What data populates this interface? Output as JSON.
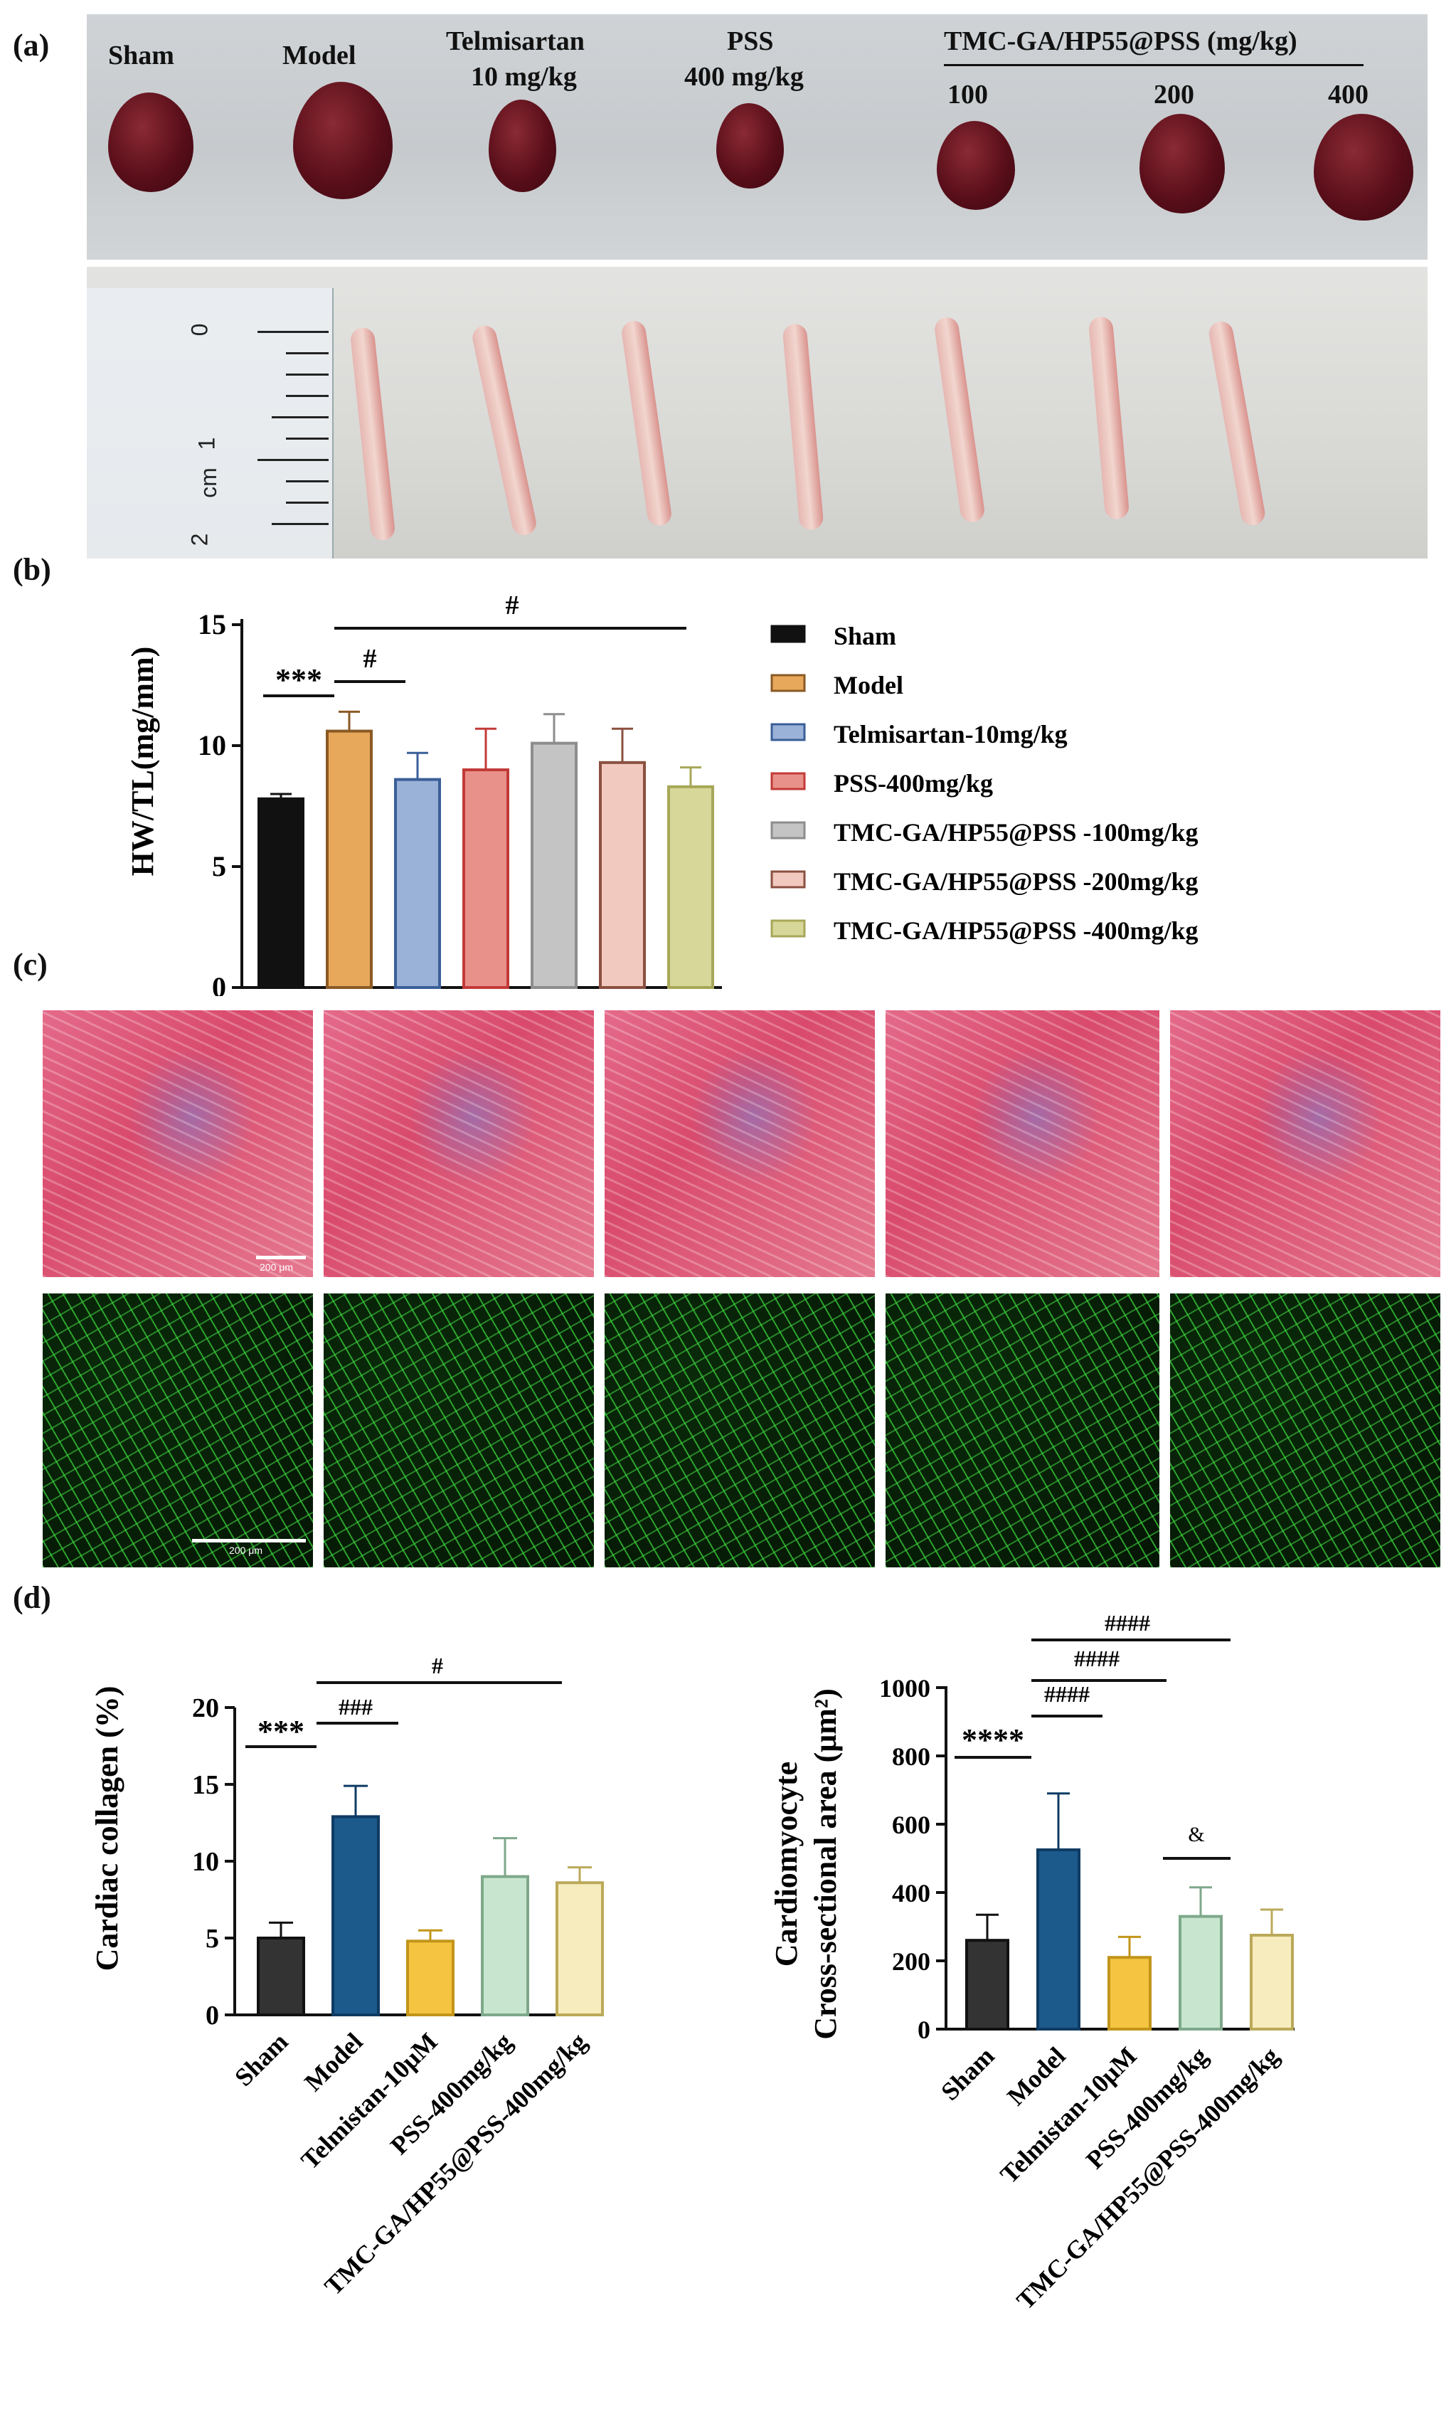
{
  "panel_labels": {
    "a": "(a)",
    "b": "(b)",
    "c": "(c)",
    "d": "(d)"
  },
  "hearts_photo": {
    "labels": {
      "sham": "Sham",
      "model": "Model",
      "telmisartan_1": "Telmisartan",
      "telmisartan_2": "10 mg/kg",
      "pss_1": "PSS",
      "pss_2": "400 mg/kg",
      "tmc_header": "TMC-GA/HP55@PSS (mg/kg)",
      "dose_100": "100",
      "dose_200": "200",
      "dose_400": "400"
    }
  },
  "tibia_photo": {
    "ruler_marks": [
      "0",
      "1",
      "cm",
      "2"
    ]
  },
  "micrographs": {
    "scale_label_top": "200 μm",
    "scale_label_bottom": "200 μm"
  },
  "colors": {
    "sham": "#111111",
    "model": "#e8a85c",
    "telmisartan": "#9bb2d8",
    "pss": "#e8918a",
    "tmc100": "#c4c4c4",
    "tmc200": "#f2c9bf",
    "tmc400": "#d7d79a",
    "d_sham": "#333333",
    "d_model": "#1c5a8c",
    "d_telmi": "#f5c542",
    "d_pss": "#c8e6cf",
    "d_tmc": "#f7ecbd"
  },
  "chart_data": [
    {
      "type": "bar",
      "ylabel": "HW/TL(mg/mm)",
      "ylim": [
        0,
        15
      ],
      "yticks": [
        "0",
        "5",
        "10",
        "15"
      ],
      "categories": [
        "Sham",
        "Model",
        "Telmisartan-10mg/kg",
        "PSS-400mg/kg",
        "TMC-GA/HP55@PSS -100mg/kg",
        "TMC-GA/HP55@PSS -200mg/kg",
        "TMC-GA/HP55@PSS -400mg/kg"
      ],
      "values": [
        7.8,
        10.6,
        8.6,
        9.0,
        10.1,
        9.3,
        8.3
      ],
      "errors": [
        0.2,
        0.8,
        1.1,
        1.7,
        1.2,
        1.4,
        0.8
      ],
      "legend": [
        "Sham",
        "Model",
        "Telmisartan-10mg/kg",
        "PSS-400mg/kg",
        "TMC-GA/HP55@PSS -100mg/kg",
        "TMC-GA/HP55@PSS -200mg/kg",
        "TMC-GA/HP55@PSS -400mg/kg"
      ],
      "legend_position": "right",
      "annotations": [
        "***",
        "#",
        "#"
      ]
    },
    {
      "type": "bar",
      "ylabel": "Cardiac collagen (%)",
      "ylim": [
        0,
        20
      ],
      "yticks": [
        "0",
        "5",
        "10",
        "15",
        "20"
      ],
      "categories": [
        "Sham",
        "Model",
        "Telmistan-10μM",
        "PSS-400mg/kg",
        "TMC-GA/HP55@PSS-400mg/kg"
      ],
      "values": [
        5.0,
        12.9,
        4.8,
        9.0,
        8.6
      ],
      "errors": [
        1.0,
        2.0,
        0.7,
        2.5,
        1.0
      ],
      "annotations": [
        "***",
        "###",
        "#"
      ]
    },
    {
      "type": "bar",
      "ylabel_line1": "Cardiomyocyte",
      "ylabel_line2": "Cross-sectional area (μm²)",
      "ylim": [
        0,
        1000
      ],
      "yticks": [
        "0",
        "200",
        "400",
        "600",
        "800",
        "1000"
      ],
      "categories": [
        "Sham",
        "Model",
        "Telmistan-10μM",
        "PSS-400mg/kg",
        "TMC-GA/HP55@PSS-400mg/kg"
      ],
      "values": [
        260,
        525,
        210,
        330,
        275
      ],
      "errors": [
        75,
        165,
        60,
        85,
        75
      ],
      "annotations": [
        "****",
        "####",
        "####",
        "####",
        "&"
      ]
    }
  ]
}
